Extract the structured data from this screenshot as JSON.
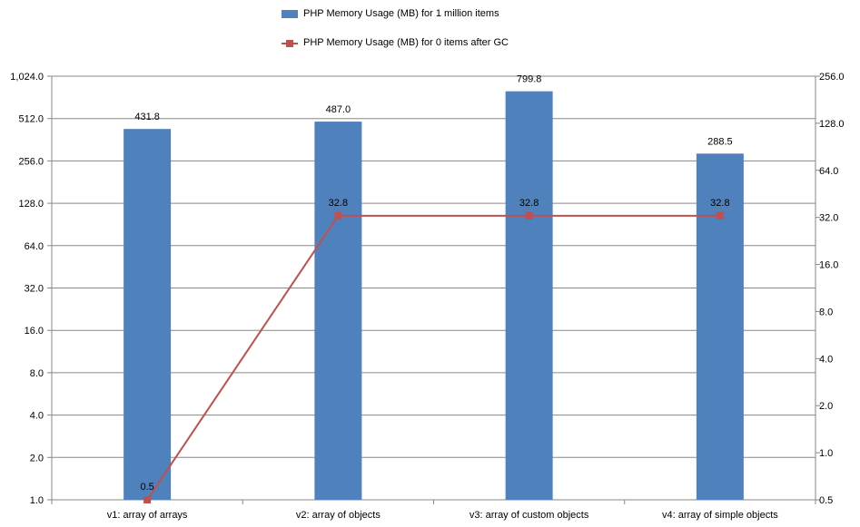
{
  "chart_data": {
    "type": "bar+line",
    "categories": [
      "v1: array of arrays",
      "v2: array of objects",
      "v3: array of custom objects",
      "v4: array of simple objects"
    ],
    "series": [
      {
        "name": "PHP Memory Usage (MB) for 1 million items",
        "type": "bar",
        "axis": "left",
        "values": [
          431.8,
          487.0,
          799.8,
          288.5
        ],
        "labels": [
          "431.8",
          "487.0",
          "799.8",
          "288.5"
        ],
        "color": "#4F81BD"
      },
      {
        "name": "PHP Memory Usage (MB) for 0 items after GC",
        "type": "line",
        "axis": "right",
        "values": [
          0.5,
          32.8,
          32.8,
          32.8
        ],
        "labels": [
          "0.5",
          "32.8",
          "32.8",
          "32.8"
        ],
        "color": "#C0504D"
      }
    ],
    "y_left": {
      "scale": "log2",
      "ylim": [
        1,
        1024
      ],
      "ticks": [
        1,
        2,
        4,
        8,
        16,
        32,
        64,
        128,
        256,
        512,
        1024
      ],
      "tick_labels": [
        "1.0",
        "2.0",
        "4.0",
        "8.0",
        "16.0",
        "32.0",
        "64.0",
        "128.0",
        "256.0",
        "512.0",
        "1,024.0"
      ]
    },
    "y_right": {
      "scale": "log2",
      "ylim": [
        0.5,
        256
      ],
      "ticks": [
        0.5,
        1,
        2,
        4,
        8,
        16,
        32,
        64,
        128,
        256
      ],
      "tick_labels": [
        "0.5",
        "1.0",
        "2.0",
        "4.0",
        "8.0",
        "16.0",
        "32.0",
        "64.0",
        "128.0",
        "256.0"
      ]
    },
    "grid": true,
    "legend_position": "top"
  }
}
